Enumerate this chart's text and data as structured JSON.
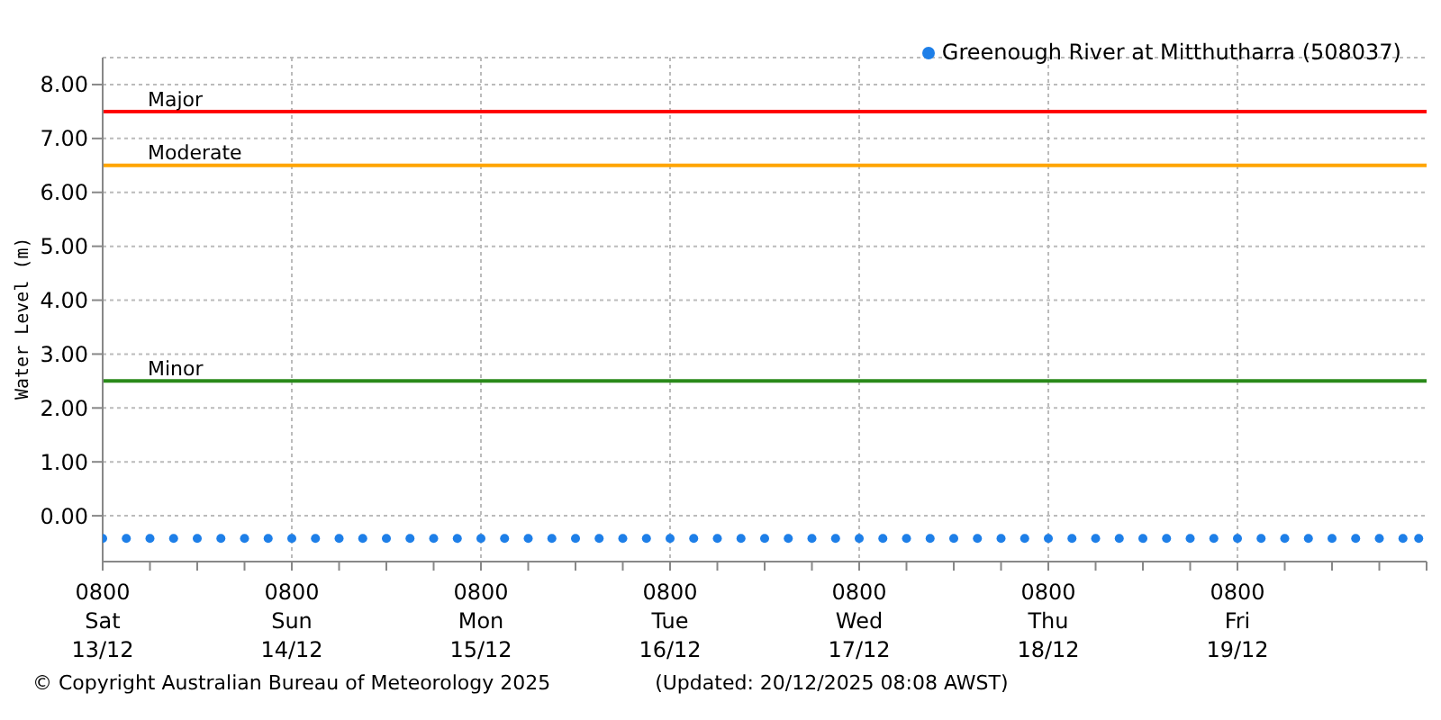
{
  "chart_data": {
    "type": "scatter",
    "ylabel": "Water Level (m)",
    "x": [
      "2025-12-13T08:00",
      "2025-12-13T11:00",
      "2025-12-13T14:00",
      "2025-12-13T17:00",
      "2025-12-13T20:00",
      "2025-12-13T23:00",
      "2025-12-14T02:00",
      "2025-12-14T05:00",
      "2025-12-14T08:00",
      "2025-12-14T11:00",
      "2025-12-14T14:00",
      "2025-12-14T17:00",
      "2025-12-14T20:00",
      "2025-12-14T23:00",
      "2025-12-15T02:00",
      "2025-12-15T05:00",
      "2025-12-15T08:00",
      "2025-12-15T11:00",
      "2025-12-15T14:00",
      "2025-12-15T17:00",
      "2025-12-15T20:00",
      "2025-12-15T23:00",
      "2025-12-16T02:00",
      "2025-12-16T05:00",
      "2025-12-16T08:00",
      "2025-12-16T11:00",
      "2025-12-16T14:00",
      "2025-12-16T17:00",
      "2025-12-16T20:00",
      "2025-12-16T23:00",
      "2025-12-17T02:00",
      "2025-12-17T05:00",
      "2025-12-17T08:00",
      "2025-12-17T11:00",
      "2025-12-17T14:00",
      "2025-12-17T17:00",
      "2025-12-17T20:00",
      "2025-12-17T23:00",
      "2025-12-18T02:00",
      "2025-12-18T05:00",
      "2025-12-18T08:00",
      "2025-12-18T11:00",
      "2025-12-18T14:00",
      "2025-12-18T17:00",
      "2025-12-18T20:00",
      "2025-12-18T23:00",
      "2025-12-19T02:00",
      "2025-12-19T05:00",
      "2025-12-19T08:00",
      "2025-12-19T11:00",
      "2025-12-19T14:00",
      "2025-12-19T17:00",
      "2025-12-19T20:00",
      "2025-12-19T23:00",
      "2025-12-20T02:00",
      "2025-12-20T05:00",
      "2025-12-20T07:00"
    ],
    "series": [
      {
        "name": "Greenough River at Mitthutharra (508037)",
        "color": "#1e7fe8",
        "values": [
          -0.42,
          -0.42,
          -0.42,
          -0.42,
          -0.42,
          -0.42,
          -0.42,
          -0.42,
          -0.42,
          -0.42,
          -0.42,
          -0.42,
          -0.42,
          -0.42,
          -0.42,
          -0.42,
          -0.42,
          -0.42,
          -0.42,
          -0.42,
          -0.42,
          -0.42,
          -0.42,
          -0.42,
          -0.42,
          -0.42,
          -0.42,
          -0.42,
          -0.42,
          -0.42,
          -0.42,
          -0.42,
          -0.42,
          -0.42,
          -0.42,
          -0.42,
          -0.42,
          -0.42,
          -0.42,
          -0.42,
          -0.42,
          -0.42,
          -0.42,
          -0.42,
          -0.42,
          -0.42,
          -0.42,
          -0.42,
          -0.42,
          -0.42,
          -0.42,
          -0.42,
          -0.42,
          -0.42,
          -0.42,
          -0.42,
          -0.42
        ]
      }
    ],
    "xlim": [
      "2025-12-13T08:00",
      "2025-12-20T08:00"
    ],
    "xticks": [
      {
        "value": "2025-12-13T08:00",
        "label": "0800\nSat\n13/12"
      },
      {
        "value": "2025-12-13T14:00",
        "label": null
      },
      {
        "value": "2025-12-13T20:00",
        "label": null
      },
      {
        "value": "2025-12-14T02:00",
        "label": null
      },
      {
        "value": "2025-12-14T08:00",
        "label": "0800\nSun\n14/12"
      },
      {
        "value": "2025-12-14T14:00",
        "label": null
      },
      {
        "value": "2025-12-14T20:00",
        "label": null
      },
      {
        "value": "2025-12-15T02:00",
        "label": null
      },
      {
        "value": "2025-12-15T08:00",
        "label": "0800\nMon\n15/12"
      },
      {
        "value": "2025-12-15T14:00",
        "label": null
      },
      {
        "value": "2025-12-15T20:00",
        "label": null
      },
      {
        "value": "2025-12-16T02:00",
        "label": null
      },
      {
        "value": "2025-12-16T08:00",
        "label": "0800\nTue\n16/12"
      },
      {
        "value": "2025-12-16T14:00",
        "label": null
      },
      {
        "value": "2025-12-16T20:00",
        "label": null
      },
      {
        "value": "2025-12-17T02:00",
        "label": null
      },
      {
        "value": "2025-12-17T08:00",
        "label": "0800\nWed\n17/12"
      },
      {
        "value": "2025-12-17T14:00",
        "label": null
      },
      {
        "value": "2025-12-17T20:00",
        "label": null
      },
      {
        "value": "2025-12-18T02:00",
        "label": null
      },
      {
        "value": "2025-12-18T08:00",
        "label": "0800\nThu\n18/12"
      },
      {
        "value": "2025-12-18T14:00",
        "label": null
      },
      {
        "value": "2025-12-18T20:00",
        "label": null
      },
      {
        "value": "2025-12-19T02:00",
        "label": null
      },
      {
        "value": "2025-12-19T08:00",
        "label": "0800\nFri\n19/12"
      },
      {
        "value": "2025-12-19T14:00",
        "label": null
      },
      {
        "value": "2025-12-19T20:00",
        "label": null
      },
      {
        "value": "2025-12-20T02:00",
        "label": null
      },
      {
        "value": "2025-12-20T08:00",
        "label": null
      }
    ],
    "ylim": [
      -0.85,
      8.5
    ],
    "yticks": [
      {
        "value": 0,
        "label": "0.00"
      },
      {
        "value": 1,
        "label": "1.00"
      },
      {
        "value": 2,
        "label": "2.00"
      },
      {
        "value": 3,
        "label": "3.00"
      },
      {
        "value": 4,
        "label": "4.00"
      },
      {
        "value": 5,
        "label": "5.00"
      },
      {
        "value": 6,
        "label": "6.00"
      },
      {
        "value": 7,
        "label": "7.00"
      },
      {
        "value": 8,
        "label": "8.00"
      }
    ],
    "ref_lines": [
      {
        "axis": "y",
        "value": 7.5,
        "label": "Major",
        "color": "#ff0000"
      },
      {
        "axis": "y",
        "value": 6.5,
        "label": "Moderate",
        "color": "#ffa500"
      },
      {
        "axis": "y",
        "value": 2.5,
        "label": "Minor",
        "color": "#2a8a1a"
      }
    ],
    "grid": true,
    "legend": "top right",
    "marker": "circle",
    "annotations": [
      "© Copyright Australian Bureau of Meteorology 2025",
      "(Updated: 20/12/2025 08:08 AWST)"
    ]
  }
}
